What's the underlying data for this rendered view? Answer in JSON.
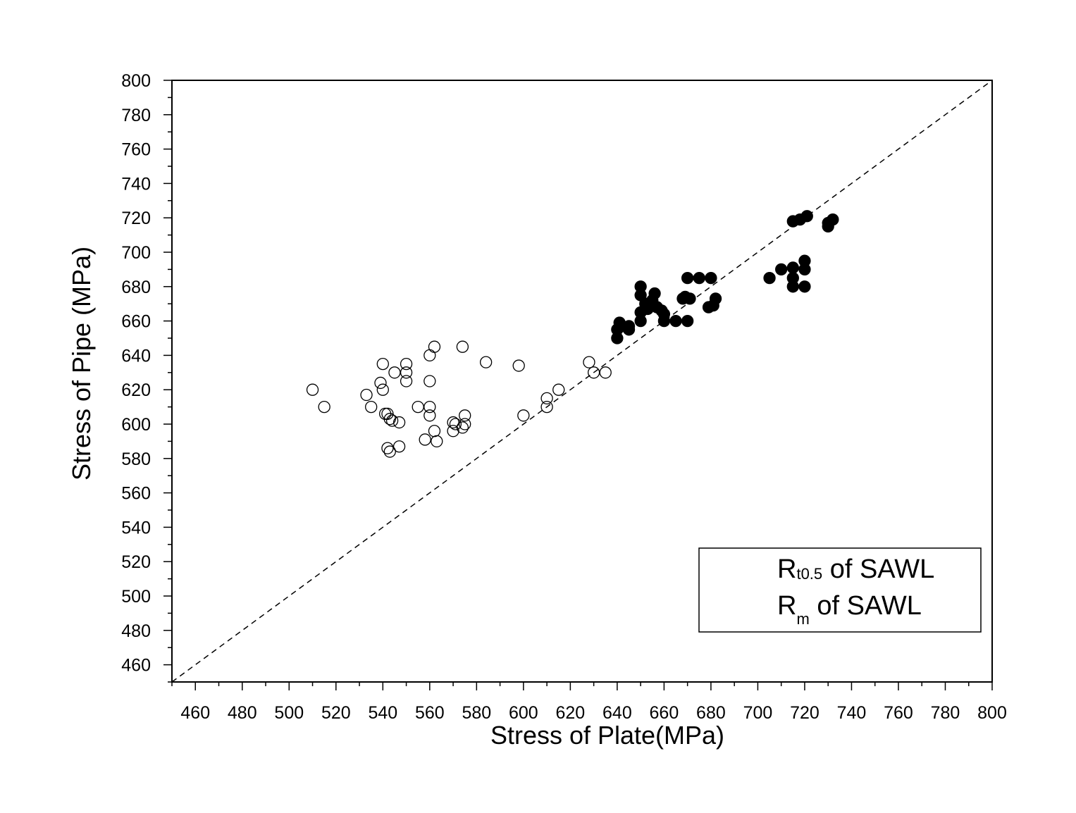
{
  "chart_data": {
    "type": "scatter",
    "xlabel": "Stress of Plate(MPa)",
    "ylabel": "Stress of Pipe (MPa)",
    "xlim": [
      450,
      800
    ],
    "ylim": [
      450,
      800
    ],
    "x_ticks": [
      460,
      480,
      500,
      520,
      540,
      560,
      580,
      600,
      620,
      640,
      660,
      680,
      700,
      720,
      740,
      760,
      780,
      800
    ],
    "y_ticks": [
      460,
      480,
      500,
      520,
      540,
      560,
      580,
      600,
      620,
      640,
      660,
      680,
      700,
      720,
      740,
      760,
      780,
      800
    ],
    "grid": false,
    "legend_position": "bottom-right",
    "reference_line": {
      "style": "dashed",
      "from": [
        450,
        450
      ],
      "to": [
        800,
        800
      ]
    },
    "series": [
      {
        "name": "Rt0.5 of SAWL",
        "marker": "open-circle",
        "color": "#000000",
        "legend_main": "R",
        "legend_sub": "t0.5",
        "legend_tail": " of SAWL",
        "points": [
          [
            510,
            620
          ],
          [
            515,
            610
          ],
          [
            533,
            617
          ],
          [
            535,
            610
          ],
          [
            539,
            624
          ],
          [
            540,
            635
          ],
          [
            540,
            620
          ],
          [
            541,
            606
          ],
          [
            542,
            606
          ],
          [
            543,
            603
          ],
          [
            545,
            630
          ],
          [
            544,
            602
          ],
          [
            547,
            601
          ],
          [
            542,
            586
          ],
          [
            543,
            584
          ],
          [
            547,
            587
          ],
          [
            550,
            635
          ],
          [
            550,
            625
          ],
          [
            550,
            630
          ],
          [
            555,
            610
          ],
          [
            558,
            591
          ],
          [
            560,
            640
          ],
          [
            560,
            625
          ],
          [
            560,
            610
          ],
          [
            560,
            605
          ],
          [
            562,
            645
          ],
          [
            562,
            596
          ],
          [
            563,
            590
          ],
          [
            570,
            601
          ],
          [
            570,
            596
          ],
          [
            571,
            600
          ],
          [
            574,
            645
          ],
          [
            574,
            598
          ],
          [
            575,
            605
          ],
          [
            575,
            600
          ],
          [
            584,
            636
          ],
          [
            598,
            634
          ],
          [
            600,
            605
          ],
          [
            610,
            615
          ],
          [
            610,
            610
          ],
          [
            615,
            620
          ],
          [
            628,
            636
          ],
          [
            630,
            630
          ],
          [
            635,
            630
          ]
        ]
      },
      {
        "name": "Rm of SAWL",
        "marker": "filled-circle",
        "color": "#000000",
        "legend_main": "R",
        "legend_sub": "m",
        "legend_tail": " of SAWL",
        "points": [
          [
            640,
            650
          ],
          [
            640,
            655
          ],
          [
            641,
            659
          ],
          [
            642,
            657
          ],
          [
            645,
            657
          ],
          [
            645,
            655
          ],
          [
            650,
            680
          ],
          [
            650,
            675
          ],
          [
            650,
            665
          ],
          [
            650,
            660
          ],
          [
            652,
            670
          ],
          [
            653,
            667
          ],
          [
            655,
            672
          ],
          [
            656,
            676
          ],
          [
            657,
            668
          ],
          [
            659,
            666
          ],
          [
            660,
            664
          ],
          [
            660,
            660
          ],
          [
            665,
            660
          ],
          [
            668,
            673
          ],
          [
            669,
            674
          ],
          [
            670,
            685
          ],
          [
            670,
            660
          ],
          [
            671,
            673
          ],
          [
            675,
            685
          ],
          [
            679,
            668
          ],
          [
            680,
            685
          ],
          [
            681,
            669
          ],
          [
            682,
            673
          ],
          [
            705,
            685
          ],
          [
            710,
            690
          ],
          [
            715,
            718
          ],
          [
            715,
            691
          ],
          [
            715,
            685
          ],
          [
            715,
            680
          ],
          [
            718,
            719
          ],
          [
            720,
            695
          ],
          [
            720,
            690
          ],
          [
            720,
            680
          ],
          [
            721,
            721
          ],
          [
            730,
            715
          ],
          [
            730,
            717
          ],
          [
            732,
            719
          ]
        ]
      }
    ]
  }
}
